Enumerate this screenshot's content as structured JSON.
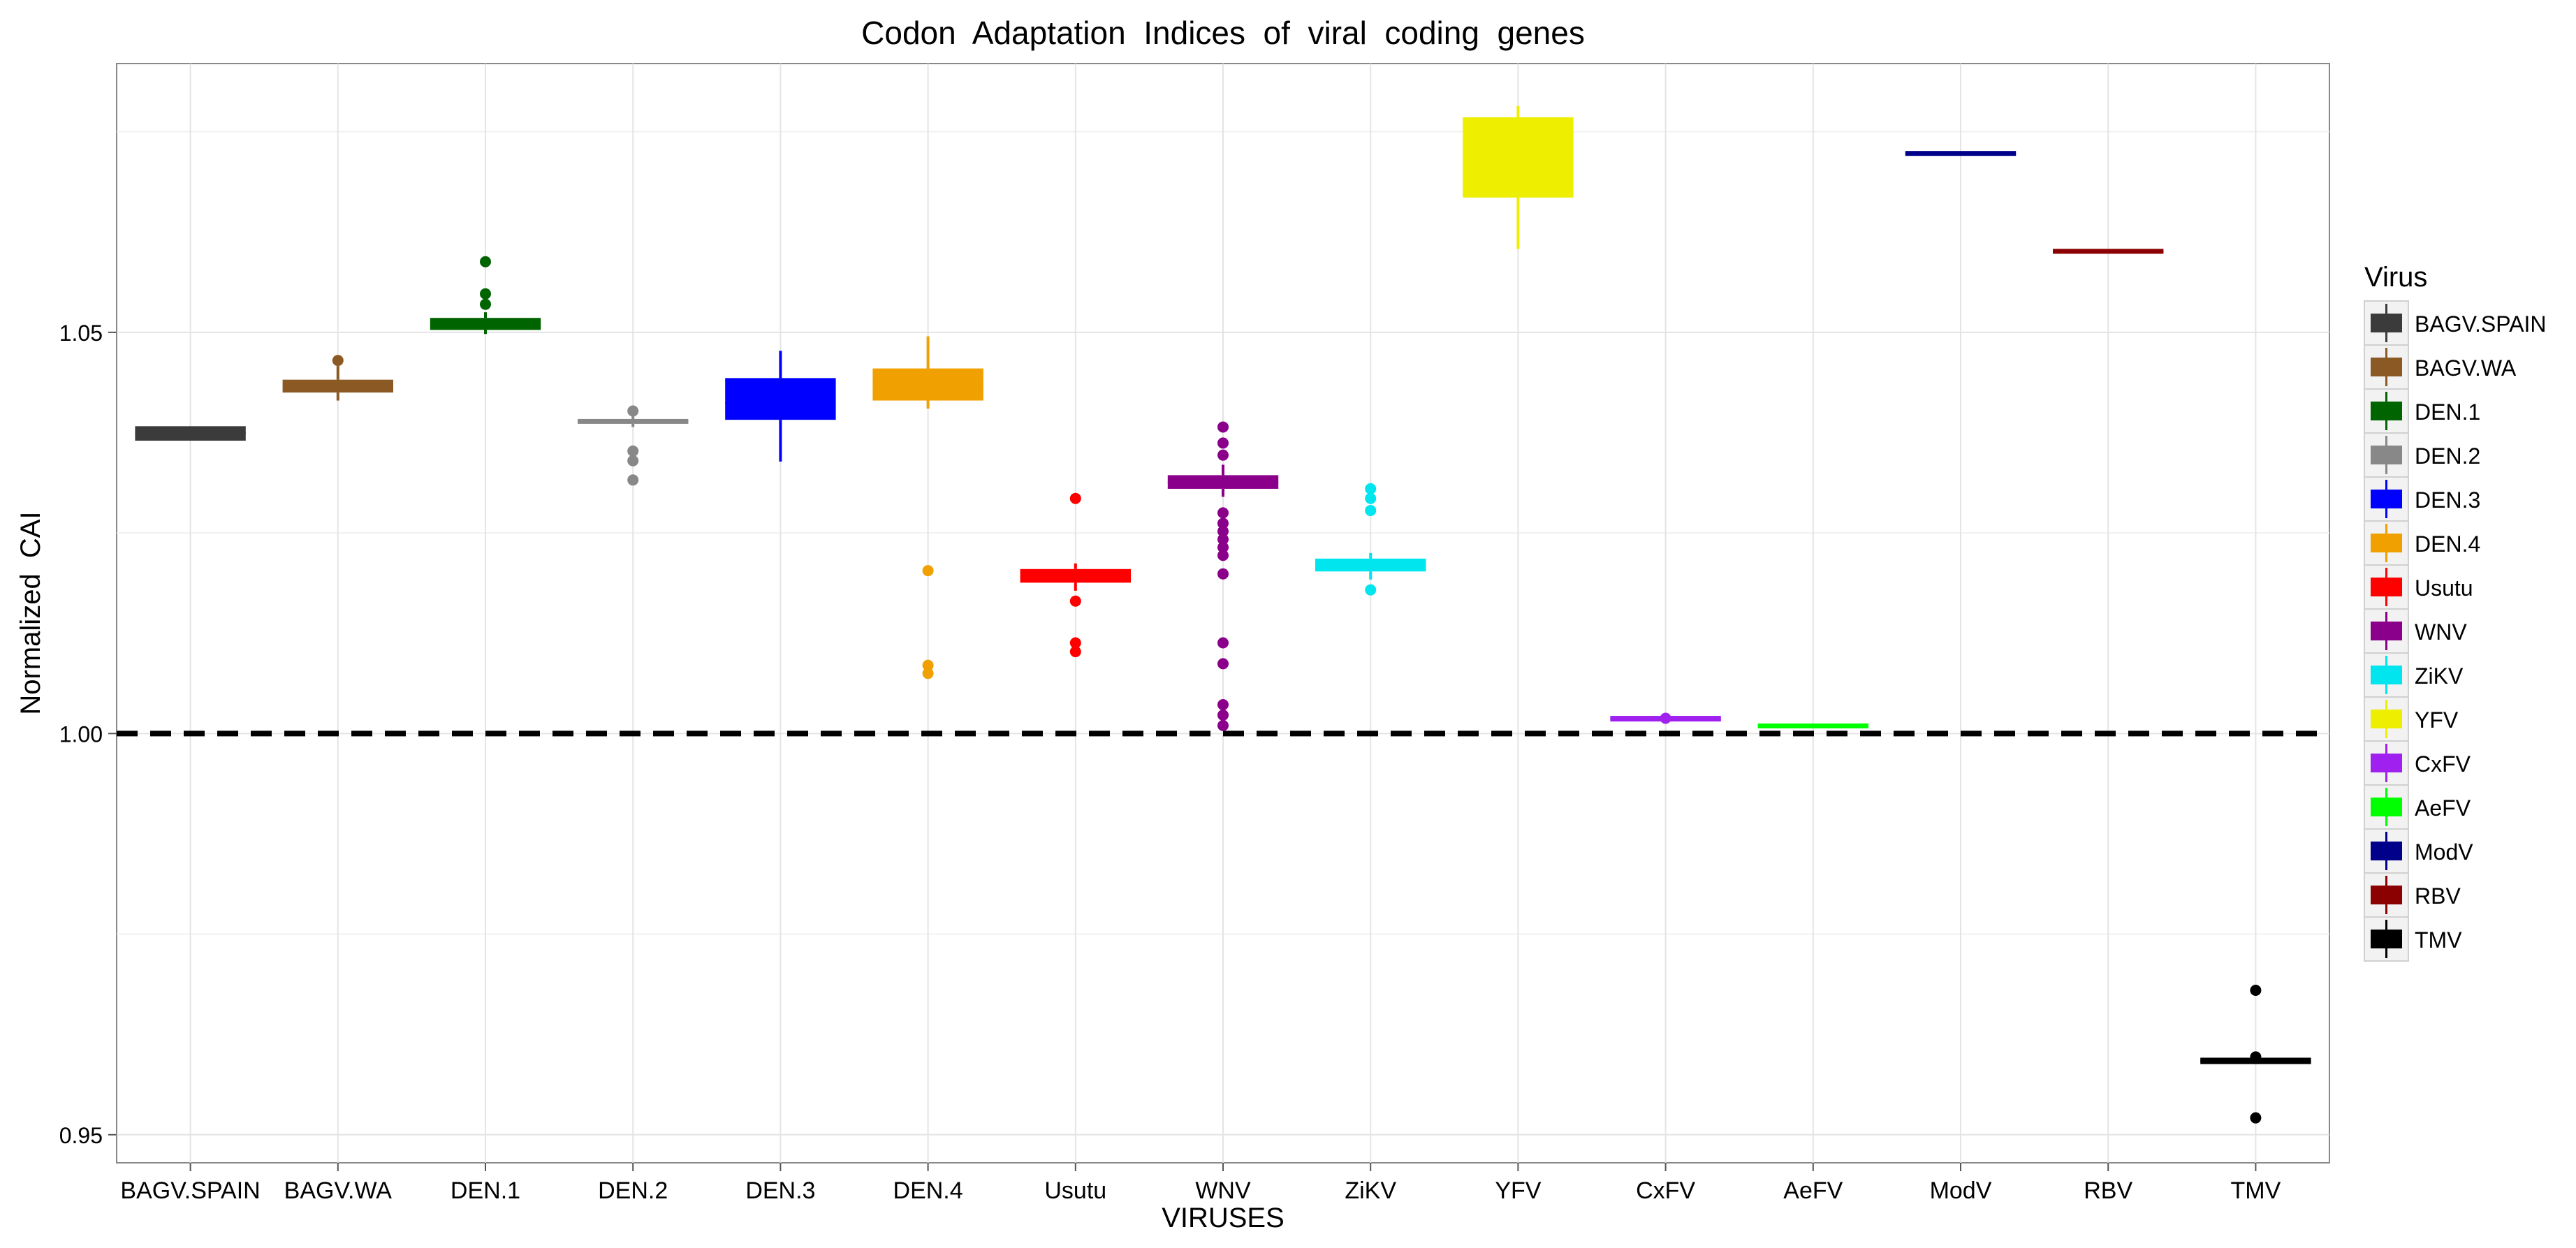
{
  "chart_data": {
    "type": "boxplot",
    "title": "Codon  Adaptation  Indices  of  viral  coding  genes",
    "xlabel": "VIRUSES",
    "ylabel": "Normalized  CAI",
    "ylim": [
      0.9465,
      1.0835
    ],
    "yticks": [
      {
        "value": 0.95,
        "label": "0.95"
      },
      {
        "value": 1.0,
        "label": "1.00"
      },
      {
        "value": 1.05,
        "label": "1.05"
      }
    ],
    "minor_grid": [
      0.975,
      1.025,
      1.075
    ],
    "reference_line": {
      "y": 1.0,
      "style": "dashed",
      "color": "#000000"
    },
    "legend": {
      "title": "Virus",
      "position": "right"
    },
    "categories": [
      "BAGV.SPAIN",
      "BAGV.WA",
      "DEN.1",
      "DEN.2",
      "DEN.3",
      "DEN.4",
      "Usutu",
      "WNV",
      "ZiKV",
      "YFV",
      "CxFV",
      "AeFV",
      "ModV",
      "RBV",
      "TMV"
    ],
    "series": [
      {
        "name": "BAGV.SPAIN",
        "color": "#3b3b3b",
        "q1": 1.0365,
        "median": 1.0375,
        "q3": 1.0383,
        "whisker_low": 1.0365,
        "whisker_high": 1.0383,
        "outliers": []
      },
      {
        "name": "BAGV.WA",
        "color": "#8b5a24",
        "q1": 1.0425,
        "median": 1.0433,
        "q3": 1.0441,
        "whisker_low": 1.0415,
        "whisker_high": 1.0458,
        "outliers": [
          1.0465
        ]
      },
      {
        "name": "DEN.1",
        "color": "#006400",
        "q1": 1.0503,
        "median": 1.0511,
        "q3": 1.0518,
        "whisker_low": 1.0498,
        "whisker_high": 1.0525,
        "outliers": [
          1.0535,
          1.0548,
          1.0588
        ]
      },
      {
        "name": "DEN.2",
        "color": "#888888",
        "q1": 1.0386,
        "median": 1.0389,
        "q3": 1.0392,
        "whisker_low": 1.0382,
        "whisker_high": 1.0396,
        "outliers": [
          1.0402,
          1.0352,
          1.034,
          1.0316
        ]
      },
      {
        "name": "DEN.3",
        "color": "#0000ff",
        "q1": 1.0391,
        "median": 1.0412,
        "q3": 1.0443,
        "whisker_low": 1.0339,
        "whisker_high": 1.0477,
        "outliers": []
      },
      {
        "name": "DEN.4",
        "color": "#f0a000",
        "q1": 1.0415,
        "median": 1.0428,
        "q3": 1.0455,
        "whisker_low": 1.0405,
        "whisker_high": 1.0495,
        "outliers": [
          1.0203,
          1.0085,
          1.0075
        ]
      },
      {
        "name": "Usutu",
        "color": "#ff0000",
        "q1": 1.0188,
        "median": 1.0195,
        "q3": 1.0205,
        "whisker_low": 1.0178,
        "whisker_high": 1.0212,
        "outliers": [
          1.0293,
          1.0165,
          1.0113,
          1.0102
        ]
      },
      {
        "name": "WNV",
        "color": "#8b008b",
        "q1": 1.0305,
        "median": 1.0313,
        "q3": 1.0322,
        "whisker_low": 1.0295,
        "whisker_high": 1.0335,
        "outliers": [
          1.0382,
          1.0362,
          1.0347,
          1.0275,
          1.0262,
          1.0252,
          1.0242,
          1.0232,
          1.0222,
          1.0199,
          1.0113,
          1.0087,
          1.0036,
          1.0023,
          1.001
        ]
      },
      {
        "name": "ZiKV",
        "color": "#00e5ee",
        "q1": 1.0202,
        "median": 1.021,
        "q3": 1.0218,
        "whisker_low": 1.0192,
        "whisker_high": 1.0225,
        "outliers": [
          1.0305,
          1.0293,
          1.0278,
          1.0179
        ]
      },
      {
        "name": "YFV",
        "color": "#eeee00",
        "q1": 1.0668,
        "median": 1.0672,
        "q3": 1.0768,
        "whisker_low": 1.0604,
        "whisker_high": 1.0782,
        "outliers": []
      },
      {
        "name": "CxFV",
        "color": "#a020f0",
        "q1": 1.0015,
        "median": 1.0018,
        "q3": 1.0022,
        "whisker_low": 1.0015,
        "whisker_high": 1.0022,
        "outliers": [
          1.0019
        ]
      },
      {
        "name": "AeFV",
        "color": "#00ff00",
        "q1": 1.0007,
        "median": 1.0009,
        "q3": 1.0012,
        "whisker_low": 1.0007,
        "whisker_high": 1.0012,
        "outliers": []
      },
      {
        "name": "ModV",
        "color": "#00008b",
        "q1": 1.0721,
        "median": 1.0723,
        "q3": 1.0725,
        "whisker_low": 1.0721,
        "whisker_high": 1.0725,
        "outliers": []
      },
      {
        "name": "RBV",
        "color": "#8b0000",
        "q1": 1.0599,
        "median": 1.0601,
        "q3": 1.0603,
        "whisker_low": 1.0599,
        "whisker_high": 1.0603,
        "outliers": []
      },
      {
        "name": "TMV",
        "color": "#000000",
        "q1": 0.9588,
        "median": 0.9592,
        "q3": 0.9596,
        "whisker_low": 0.9588,
        "whisker_high": 0.9596,
        "outliers": [
          0.968,
          0.9597,
          0.9521
        ]
      }
    ]
  }
}
